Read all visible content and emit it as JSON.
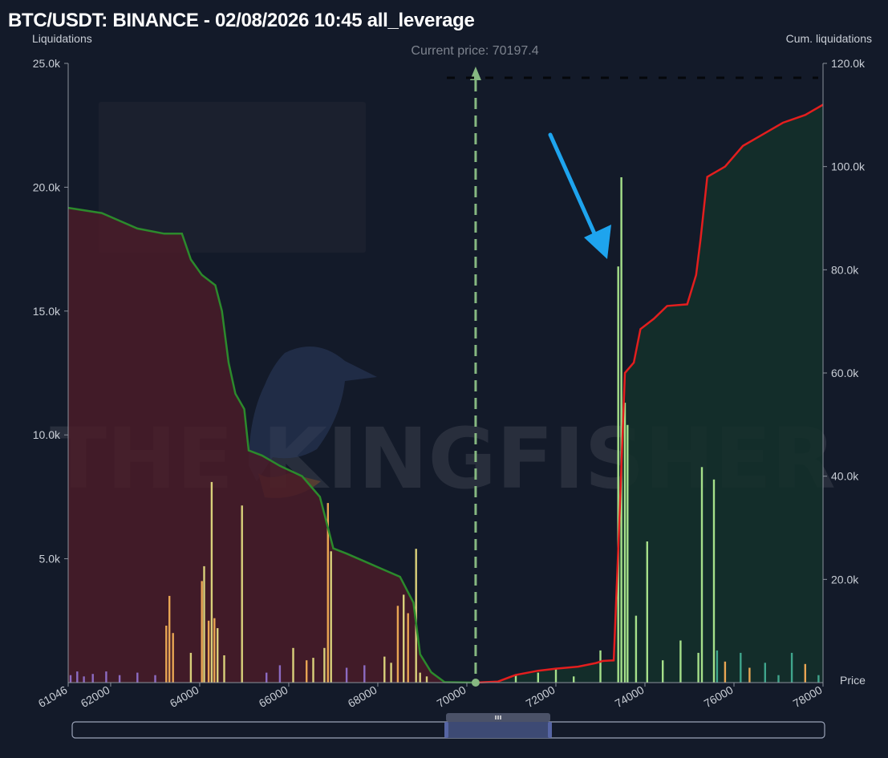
{
  "title": "BTC/USDT: BINANCE - 02/08/2026 10:45 all_leverage",
  "watermark": "THE KINGFISHER",
  "colors": {
    "background": "#131a29",
    "long_cum_line": "#2c8a2c",
    "short_cum_line": "#e31e1e",
    "long_fill": "#4a1c28",
    "short_fill": "#14302a",
    "current_price_line": "#86b881",
    "arrow": "#1ea4ee",
    "bar_yellow": "#d9d07a",
    "bar_orange": "#e8a553",
    "bar_purple": "#8c6bc2",
    "bar_lightgreen": "#a5e08a",
    "bar_teal": "#3fa58c"
  },
  "chart_data": {
    "type": "bar",
    "title": "BTC/USDT: BINANCE - 02/08/2026 10:45 all_leverage",
    "xlabel": "Price",
    "ylabel": "Liquidations",
    "y2label": "Cum. liquidations",
    "xlim": [
      61046,
      78000
    ],
    "ylim": [
      0,
      25000
    ],
    "y2lim": [
      0,
      120000
    ],
    "x_ticks": [
      "61046",
      "62000",
      "64000",
      "66000",
      "68000",
      "70000",
      "72000",
      "74000",
      "76000",
      "78000"
    ],
    "y_ticks": [
      "5.0k",
      "10.0k",
      "15.0k",
      "20.0k",
      "25.0k"
    ],
    "y2_ticks": [
      "20.0k",
      "40.0k",
      "60.0k",
      "80.0k",
      "100.0k",
      "120.0k"
    ],
    "current_price_label": "Current price: 70197.4",
    "current_price": 70197.4,
    "bars": [
      {
        "x": 61100,
        "y": 300,
        "c": "purple"
      },
      {
        "x": 61250,
        "y": 450,
        "c": "purple"
      },
      {
        "x": 61400,
        "y": 250,
        "c": "purple"
      },
      {
        "x": 61600,
        "y": 350,
        "c": "purple"
      },
      {
        "x": 61900,
        "y": 450,
        "c": "purple"
      },
      {
        "x": 62200,
        "y": 300,
        "c": "purple"
      },
      {
        "x": 62600,
        "y": 400,
        "c": "purple"
      },
      {
        "x": 63000,
        "y": 300,
        "c": "purple"
      },
      {
        "x": 63250,
        "y": 2300,
        "c": "orange"
      },
      {
        "x": 63320,
        "y": 3500,
        "c": "orange"
      },
      {
        "x": 63400,
        "y": 2000,
        "c": "orange"
      },
      {
        "x": 63800,
        "y": 1200,
        "c": "yellow"
      },
      {
        "x": 64050,
        "y": 4100,
        "c": "orange"
      },
      {
        "x": 64100,
        "y": 4700,
        "c": "yellow"
      },
      {
        "x": 64200,
        "y": 2500,
        "c": "orange"
      },
      {
        "x": 64270,
        "y": 8100,
        "c": "yellow"
      },
      {
        "x": 64330,
        "y": 2600,
        "c": "orange"
      },
      {
        "x": 64400,
        "y": 2200,
        "c": "yellow"
      },
      {
        "x": 64550,
        "y": 1100,
        "c": "yellow"
      },
      {
        "x": 64950,
        "y": 7150,
        "c": "yellow"
      },
      {
        "x": 65500,
        "y": 400,
        "c": "purple"
      },
      {
        "x": 65800,
        "y": 700,
        "c": "purple"
      },
      {
        "x": 66100,
        "y": 1400,
        "c": "yellow"
      },
      {
        "x": 66400,
        "y": 900,
        "c": "orange"
      },
      {
        "x": 66550,
        "y": 1000,
        "c": "yellow"
      },
      {
        "x": 66800,
        "y": 1400,
        "c": "yellow"
      },
      {
        "x": 66880,
        "y": 7250,
        "c": "orange"
      },
      {
        "x": 66950,
        "y": 5300,
        "c": "yellow"
      },
      {
        "x": 67300,
        "y": 600,
        "c": "purple"
      },
      {
        "x": 67700,
        "y": 700,
        "c": "purple"
      },
      {
        "x": 68150,
        "y": 1050,
        "c": "yellow"
      },
      {
        "x": 68300,
        "y": 800,
        "c": "yellow"
      },
      {
        "x": 68450,
        "y": 3100,
        "c": "orange"
      },
      {
        "x": 68580,
        "y": 3550,
        "c": "yellow"
      },
      {
        "x": 68680,
        "y": 2800,
        "c": "orange"
      },
      {
        "x": 68860,
        "y": 5400,
        "c": "yellow"
      },
      {
        "x": 68950,
        "y": 400,
        "c": "yellow"
      },
      {
        "x": 69100,
        "y": 250,
        "c": "yellow"
      },
      {
        "x": 71100,
        "y": 300,
        "c": "lightgreen"
      },
      {
        "x": 71600,
        "y": 400,
        "c": "lightgreen"
      },
      {
        "x": 72000,
        "y": 600,
        "c": "lightgreen"
      },
      {
        "x": 72400,
        "y": 250,
        "c": "lightgreen"
      },
      {
        "x": 73000,
        "y": 1300,
        "c": "lightgreen"
      },
      {
        "x": 73400,
        "y": 16800,
        "c": "lightgreen"
      },
      {
        "x": 73470,
        "y": 20400,
        "c": "lightgreen"
      },
      {
        "x": 73550,
        "y": 11300,
        "c": "lightgreen"
      },
      {
        "x": 73610,
        "y": 10400,
        "c": "lightgreen"
      },
      {
        "x": 73800,
        "y": 2700,
        "c": "lightgreen"
      },
      {
        "x": 74050,
        "y": 5700,
        "c": "lightgreen"
      },
      {
        "x": 74400,
        "y": 900,
        "c": "lightgreen"
      },
      {
        "x": 74800,
        "y": 1700,
        "c": "lightgreen"
      },
      {
        "x": 75200,
        "y": 1200,
        "c": "lightgreen"
      },
      {
        "x": 75280,
        "y": 8700,
        "c": "lightgreen"
      },
      {
        "x": 75550,
        "y": 8200,
        "c": "lightgreen"
      },
      {
        "x": 75620,
        "y": 1300,
        "c": "teal"
      },
      {
        "x": 75800,
        "y": 850,
        "c": "orange"
      },
      {
        "x": 76150,
        "y": 1200,
        "c": "teal"
      },
      {
        "x": 76350,
        "y": 600,
        "c": "orange"
      },
      {
        "x": 76700,
        "y": 800,
        "c": "teal"
      },
      {
        "x": 77000,
        "y": 300,
        "c": "teal"
      },
      {
        "x": 77300,
        "y": 1200,
        "c": "teal"
      },
      {
        "x": 77600,
        "y": 750,
        "c": "orange"
      },
      {
        "x": 77900,
        "y": 300,
        "c": "teal"
      }
    ],
    "long_cumulative": {
      "name": "long",
      "points": [
        [
          61046,
          92000
        ],
        [
          61800,
          91000
        ],
        [
          62600,
          88000
        ],
        [
          63200,
          87000
        ],
        [
          63600,
          87000
        ],
        [
          63800,
          82000
        ],
        [
          64050,
          79000
        ],
        [
          64350,
          77000
        ],
        [
          64500,
          72000
        ],
        [
          64650,
          62000
        ],
        [
          64800,
          56000
        ],
        [
          65000,
          53000
        ],
        [
          65100,
          45000
        ],
        [
          65400,
          44000
        ],
        [
          65800,
          42000
        ],
        [
          66300,
          40000
        ],
        [
          66700,
          36000
        ],
        [
          67000,
          26000
        ],
        [
          67300,
          25000
        ],
        [
          67700,
          23500
        ],
        [
          68100,
          22000
        ],
        [
          68500,
          20500
        ],
        [
          68800,
          15500
        ],
        [
          68950,
          5500
        ],
        [
          69200,
          2000
        ],
        [
          69500,
          100
        ],
        [
          70197,
          0
        ]
      ]
    },
    "short_cumulative": {
      "name": "short",
      "points": [
        [
          70197,
          0
        ],
        [
          70700,
          200
        ],
        [
          71100,
          1500
        ],
        [
          71600,
          2300
        ],
        [
          72000,
          2700
        ],
        [
          72500,
          3100
        ],
        [
          72900,
          3800
        ],
        [
          73050,
          4200
        ],
        [
          73300,
          4300
        ],
        [
          73420,
          30000
        ],
        [
          73550,
          60000
        ],
        [
          73750,
          62000
        ],
        [
          73900,
          68500
        ],
        [
          74200,
          70500
        ],
        [
          74500,
          73000
        ],
        [
          74950,
          73300
        ],
        [
          75150,
          79000
        ],
        [
          75250,
          86000
        ],
        [
          75400,
          98000
        ],
        [
          75800,
          100000
        ],
        [
          76200,
          104000
        ],
        [
          76600,
          106000
        ],
        [
          77100,
          108500
        ],
        [
          77600,
          110000
        ],
        [
          78000,
          112000
        ]
      ]
    }
  }
}
